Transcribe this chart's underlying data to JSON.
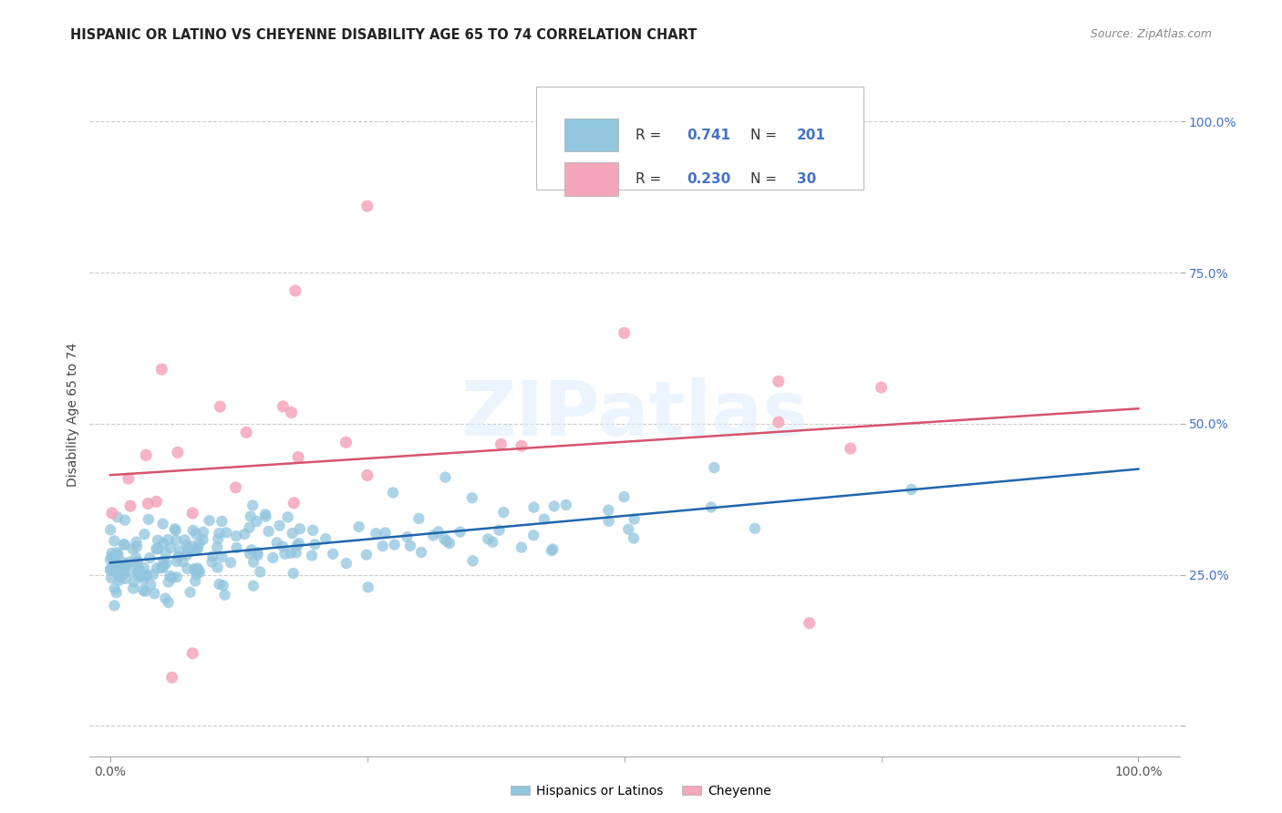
{
  "title": "HISPANIC OR LATINO VS CHEYENNE DISABILITY AGE 65 TO 74 CORRELATION CHART",
  "source": "Source: ZipAtlas.com",
  "ylabel": "Disability Age 65 to 74",
  "xlim": [
    -0.02,
    1.04
  ],
  "ylim": [
    -0.05,
    1.08
  ],
  "xtick_pos": [
    0.0,
    0.25,
    0.5,
    0.75,
    1.0
  ],
  "xtick_labels": [
    "0.0%",
    "",
    "",
    "",
    "100.0%"
  ],
  "ytick_pos": [
    0.0,
    0.25,
    0.5,
    0.75,
    1.0
  ],
  "ytick_labels_right": [
    "",
    "25.0%",
    "50.0%",
    "75.0%",
    "100.0%"
  ],
  "blue_color": "#92c5de",
  "pink_color": "#f4a6bb",
  "blue_line_color": "#2166ac",
  "pink_line_color": "#d6546e",
  "blue_line_x": [
    0.0,
    1.0
  ],
  "blue_line_y": [
    0.27,
    0.425
  ],
  "pink_line_x": [
    0.0,
    1.0
  ],
  "pink_line_y": [
    0.415,
    0.525
  ],
  "legend_R1": "0.741",
  "legend_N1": "201",
  "legend_R2": "0.230",
  "legend_N2": "30",
  "watermark": "ZIPatlas",
  "background_color": "#ffffff",
  "grid_color": "#cccccc",
  "right_axis_color": "#4472c4",
  "title_color": "#222222",
  "source_color": "#888888"
}
